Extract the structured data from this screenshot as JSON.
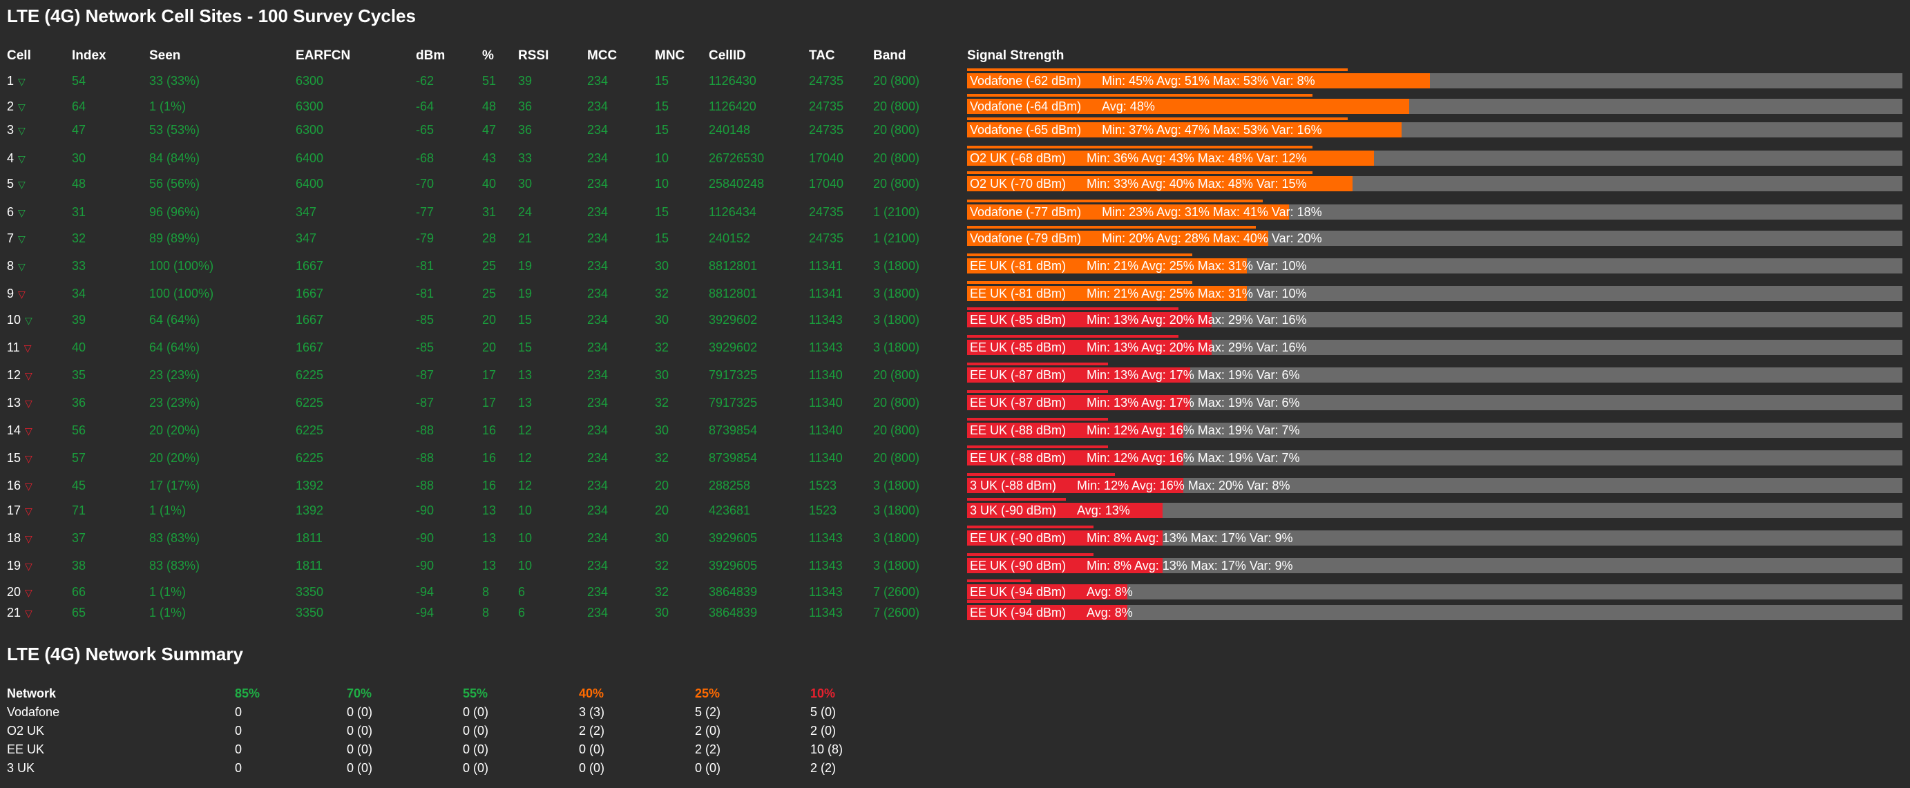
{
  "page_title": "LTE (4G) Network Cell Sites - 100 Survey Cycles",
  "columns": [
    "Cell",
    "Index",
    "Seen",
    "EARFCN",
    "dBm",
    "%",
    "RSSI",
    "MCC",
    "MNC",
    "CellID",
    "TAC",
    "Band",
    "Signal Strength"
  ],
  "colors": {
    "orange": "#ff6a00",
    "red": "#e8202e",
    "green_text": "#1a9e3c",
    "track": "#6a6a6a",
    "background": "#2b2b2b"
  },
  "rows": [
    {
      "cell": "1",
      "trend": "green",
      "index": "54",
      "seen": "33 (33%)",
      "earfcn": "6300",
      "dbm": "-62",
      "pct": "51",
      "rssi": "39",
      "mcc": "234",
      "mnc": "15",
      "cellid": "1126430",
      "tac": "24735",
      "band": "20 (800)",
      "label": "Vodafone (-62 dBm)",
      "stats": "Min: 45% Avg: 51% Max: 53% Var: 8%",
      "avg": 51,
      "max": 53,
      "color": "orange"
    },
    {
      "cell": "2",
      "trend": "green",
      "index": "64",
      "seen": "1 (1%)",
      "earfcn": "6300",
      "dbm": "-64",
      "pct": "48",
      "rssi": "36",
      "mcc": "234",
      "mnc": "15",
      "cellid": "1126420",
      "tac": "24735",
      "band": "20 (800)",
      "label": "Vodafone (-64 dBm)",
      "stats": "Avg: 48%",
      "avg": 48,
      "max": 48,
      "color": "orange"
    },
    {
      "cell": "3",
      "trend": "green",
      "index": "47",
      "seen": "53 (53%)",
      "earfcn": "6300",
      "dbm": "-65",
      "pct": "47",
      "rssi": "36",
      "mcc": "234",
      "mnc": "15",
      "cellid": "240148",
      "tac": "24735",
      "band": "20 (800)",
      "label": "Vodafone (-65 dBm)",
      "stats": "Min: 37% Avg: 47% Max: 53% Var: 16%",
      "avg": 47,
      "max": 53,
      "color": "orange"
    },
    {
      "cell": "4",
      "trend": "green",
      "index": "30",
      "seen": "84 (84%)",
      "earfcn": "6400",
      "dbm": "-68",
      "pct": "43",
      "rssi": "33",
      "mcc": "234",
      "mnc": "10",
      "cellid": "26726530",
      "tac": "17040",
      "band": "20 (800)",
      "label": "O2 UK (-68 dBm)",
      "stats": "Min: 36% Avg: 43% Max: 48% Var: 12%",
      "avg": 43,
      "max": 48,
      "color": "orange"
    },
    {
      "cell": "5",
      "trend": "green",
      "index": "48",
      "seen": "56 (56%)",
      "earfcn": "6400",
      "dbm": "-70",
      "pct": "40",
      "rssi": "30",
      "mcc": "234",
      "mnc": "10",
      "cellid": "25840248",
      "tac": "17040",
      "band": "20 (800)",
      "label": "O2 UK (-70 dBm)",
      "stats": "Min: 33% Avg: 40% Max: 48% Var: 15%",
      "avg": 40,
      "max": 48,
      "color": "orange"
    },
    {
      "cell": "6",
      "trend": "green",
      "index": "31",
      "seen": "96 (96%)",
      "earfcn": "347",
      "dbm": "-77",
      "pct": "31",
      "rssi": "24",
      "mcc": "234",
      "mnc": "15",
      "cellid": "1126434",
      "tac": "24735",
      "band": "1 (2100)",
      "label": "Vodafone (-77 dBm)",
      "stats": "Min: 23% Avg: 31% Max: 41% Var: 18%",
      "avg": 31,
      "max": 41,
      "color": "orange"
    },
    {
      "cell": "7",
      "trend": "green",
      "index": "32",
      "seen": "89 (89%)",
      "earfcn": "347",
      "dbm": "-79",
      "pct": "28",
      "rssi": "21",
      "mcc": "234",
      "mnc": "15",
      "cellid": "240152",
      "tac": "24735",
      "band": "1 (2100)",
      "label": "Vodafone (-79 dBm)",
      "stats": "Min: 20% Avg: 28% Max: 40% Var: 20%",
      "avg": 28,
      "max": 40,
      "color": "orange"
    },
    {
      "cell": "8",
      "trend": "green",
      "index": "33",
      "seen": "100 (100%)",
      "earfcn": "1667",
      "dbm": "-81",
      "pct": "25",
      "rssi": "19",
      "mcc": "234",
      "mnc": "30",
      "cellid": "8812801",
      "tac": "11341",
      "band": "3 (1800)",
      "label": "EE UK (-81 dBm)",
      "stats": "Min: 21% Avg: 25% Max: 31% Var: 10%",
      "avg": 25,
      "max": 31,
      "color": "orange"
    },
    {
      "cell": "9",
      "trend": "red",
      "index": "34",
      "seen": "100 (100%)",
      "earfcn": "1667",
      "dbm": "-81",
      "pct": "25",
      "rssi": "19",
      "mcc": "234",
      "mnc": "32",
      "cellid": "8812801",
      "tac": "11341",
      "band": "3 (1800)",
      "label": "EE UK (-81 dBm)",
      "stats": "Min: 21% Avg: 25% Max: 31% Var: 10%",
      "avg": 25,
      "max": 31,
      "color": "orange"
    },
    {
      "cell": "10",
      "trend": "green",
      "index": "39",
      "seen": "64 (64%)",
      "earfcn": "1667",
      "dbm": "-85",
      "pct": "20",
      "rssi": "15",
      "mcc": "234",
      "mnc": "30",
      "cellid": "3929602",
      "tac": "11343",
      "band": "3 (1800)",
      "label": "EE UK (-85 dBm)",
      "stats": "Min: 13% Avg: 20% Max: 29% Var: 16%",
      "avg": 20,
      "max": 29,
      "color": "red"
    },
    {
      "cell": "11",
      "trend": "red",
      "index": "40",
      "seen": "64 (64%)",
      "earfcn": "1667",
      "dbm": "-85",
      "pct": "20",
      "rssi": "15",
      "mcc": "234",
      "mnc": "32",
      "cellid": "3929602",
      "tac": "11343",
      "band": "3 (1800)",
      "label": "EE UK (-85 dBm)",
      "stats": "Min: 13% Avg: 20% Max: 29% Var: 16%",
      "avg": 20,
      "max": 29,
      "color": "red"
    },
    {
      "cell": "12",
      "trend": "red",
      "index": "35",
      "seen": "23 (23%)",
      "earfcn": "6225",
      "dbm": "-87",
      "pct": "17",
      "rssi": "13",
      "mcc": "234",
      "mnc": "30",
      "cellid": "7917325",
      "tac": "11340",
      "band": "20 (800)",
      "label": "EE UK (-87 dBm)",
      "stats": "Min: 13% Avg: 17% Max: 19% Var: 6%",
      "avg": 17,
      "max": 19,
      "color": "red"
    },
    {
      "cell": "13",
      "trend": "red",
      "index": "36",
      "seen": "23 (23%)",
      "earfcn": "6225",
      "dbm": "-87",
      "pct": "17",
      "rssi": "13",
      "mcc": "234",
      "mnc": "32",
      "cellid": "7917325",
      "tac": "11340",
      "band": "20 (800)",
      "label": "EE UK (-87 dBm)",
      "stats": "Min: 13% Avg: 17% Max: 19% Var: 6%",
      "avg": 17,
      "max": 19,
      "color": "red"
    },
    {
      "cell": "14",
      "trend": "red",
      "index": "56",
      "seen": "20 (20%)",
      "earfcn": "6225",
      "dbm": "-88",
      "pct": "16",
      "rssi": "12",
      "mcc": "234",
      "mnc": "30",
      "cellid": "8739854",
      "tac": "11340",
      "band": "20 (800)",
      "label": "EE UK (-88 dBm)",
      "stats": "Min: 12% Avg: 16% Max: 19% Var: 7%",
      "avg": 16,
      "max": 19,
      "color": "red"
    },
    {
      "cell": "15",
      "trend": "red",
      "index": "57",
      "seen": "20 (20%)",
      "earfcn": "6225",
      "dbm": "-88",
      "pct": "16",
      "rssi": "12",
      "mcc": "234",
      "mnc": "32",
      "cellid": "8739854",
      "tac": "11340",
      "band": "20 (800)",
      "label": "EE UK (-88 dBm)",
      "stats": "Min: 12% Avg: 16% Max: 19% Var: 7%",
      "avg": 16,
      "max": 19,
      "color": "red"
    },
    {
      "cell": "16",
      "trend": "red",
      "index": "45",
      "seen": "17 (17%)",
      "earfcn": "1392",
      "dbm": "-88",
      "pct": "16",
      "rssi": "12",
      "mcc": "234",
      "mnc": "20",
      "cellid": "288258",
      "tac": "1523",
      "band": "3 (1800)",
      "label": "3 UK (-88 dBm)",
      "stats": "Min: 12% Avg: 16% Max: 20% Var: 8%",
      "avg": 16,
      "max": 20,
      "color": "red"
    },
    {
      "cell": "17",
      "trend": "red",
      "index": "71",
      "seen": "1 (1%)",
      "earfcn": "1392",
      "dbm": "-90",
      "pct": "13",
      "rssi": "10",
      "mcc": "234",
      "mnc": "20",
      "cellid": "423681",
      "tac": "1523",
      "band": "3 (1800)",
      "label": "3 UK (-90 dBm)",
      "stats": "Avg: 13%",
      "avg": 13,
      "max": 13,
      "color": "red"
    },
    {
      "cell": "18",
      "trend": "red",
      "index": "37",
      "seen": "83 (83%)",
      "earfcn": "1811",
      "dbm": "-90",
      "pct": "13",
      "rssi": "10",
      "mcc": "234",
      "mnc": "30",
      "cellid": "3929605",
      "tac": "11343",
      "band": "3 (1800)",
      "label": "EE UK (-90 dBm)",
      "stats": "Min: 8% Avg: 13% Max: 17% Var: 9%",
      "avg": 13,
      "max": 17,
      "color": "red"
    },
    {
      "cell": "19",
      "trend": "red",
      "index": "38",
      "seen": "83 (83%)",
      "earfcn": "1811",
      "dbm": "-90",
      "pct": "13",
      "rssi": "10",
      "mcc": "234",
      "mnc": "32",
      "cellid": "3929605",
      "tac": "11343",
      "band": "3 (1800)",
      "label": "EE UK (-90 dBm)",
      "stats": "Min: 8% Avg: 13% Max: 17% Var: 9%",
      "avg": 13,
      "max": 17,
      "color": "red"
    },
    {
      "cell": "20",
      "trend": "red",
      "index": "66",
      "seen": "1 (1%)",
      "earfcn": "3350",
      "dbm": "-94",
      "pct": "8",
      "rssi": "6",
      "mcc": "234",
      "mnc": "32",
      "cellid": "3864839",
      "tac": "11343",
      "band": "7 (2600)",
      "label": "EE UK (-94 dBm)",
      "stats": "Avg: 8%",
      "avg": 8,
      "max": 8,
      "color": "red"
    },
    {
      "cell": "21",
      "trend": "red",
      "index": "65",
      "seen": "1 (1%)",
      "earfcn": "3350",
      "dbm": "-94",
      "pct": "8",
      "rssi": "6",
      "mcc": "234",
      "mnc": "30",
      "cellid": "3864839",
      "tac": "11343",
      "band": "7 (2600)",
      "label": "EE UK (-94 dBm)",
      "stats": "Avg: 8%",
      "avg": 8,
      "max": 8,
      "color": "red"
    }
  ],
  "summary": {
    "title": "LTE (4G) Network Summary",
    "header": "Network",
    "levels": [
      {
        "label": "85%",
        "color": "#1fae45"
      },
      {
        "label": "70%",
        "color": "#1fae45"
      },
      {
        "label": "55%",
        "color": "#1fae45"
      },
      {
        "label": "40%",
        "color": "#ff6a00"
      },
      {
        "label": "25%",
        "color": "#ff6a00"
      },
      {
        "label": "10%",
        "color": "#e8202e"
      }
    ],
    "rows": [
      {
        "network": "Vodafone",
        "values": [
          "0",
          "0 (0)",
          "0 (0)",
          "3 (3)",
          "5 (2)",
          "5 (0)"
        ]
      },
      {
        "network": "O2 UK",
        "values": [
          "0",
          "0 (0)",
          "0 (0)",
          "2 (2)",
          "2 (0)",
          "2 (0)"
        ]
      },
      {
        "network": "EE UK",
        "values": [
          "0",
          "0 (0)",
          "0 (0)",
          "0 (0)",
          "2 (2)",
          "10 (8)"
        ]
      },
      {
        "network": "3 UK",
        "values": [
          "0",
          "0 (0)",
          "0 (0)",
          "0 (0)",
          "0 (0)",
          "2 (2)"
        ]
      }
    ]
  }
}
